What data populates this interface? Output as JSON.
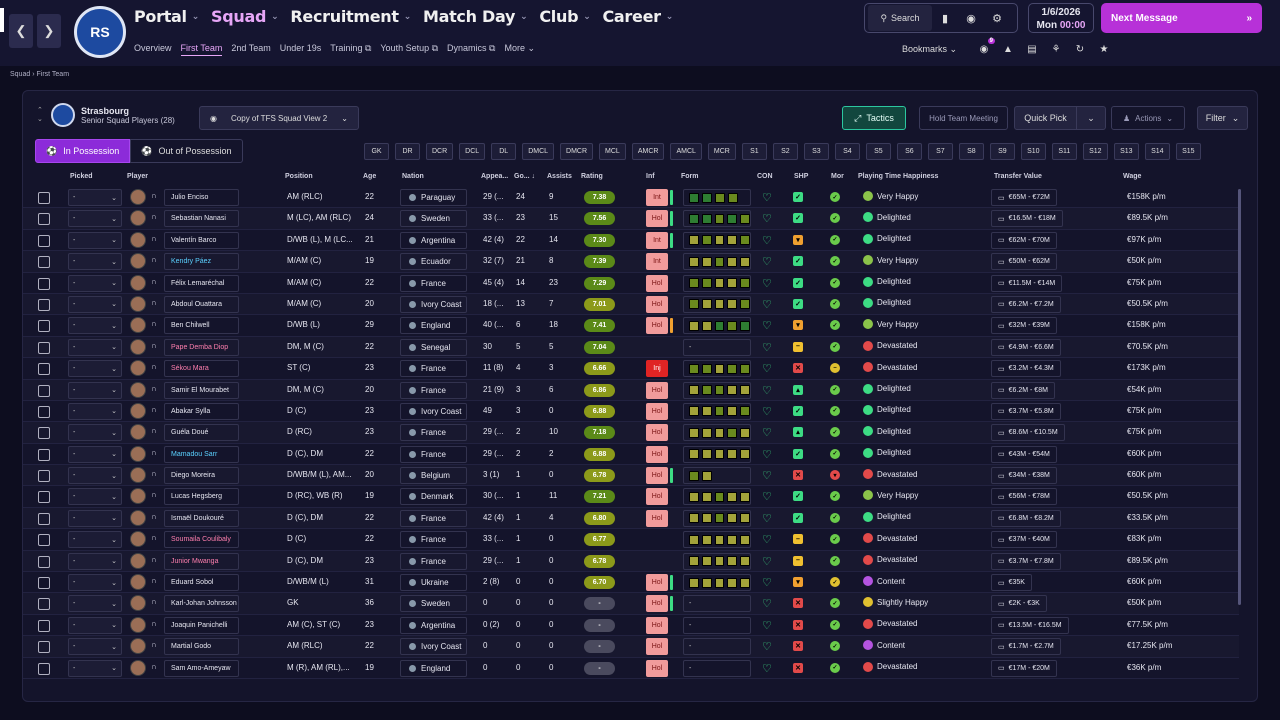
{
  "nav": {
    "items": [
      {
        "label": "Portal"
      },
      {
        "label": "Squad"
      },
      {
        "label": "Recruitment"
      },
      {
        "label": "Match Day"
      },
      {
        "label": "Club"
      },
      {
        "label": "Career"
      }
    ],
    "sub": [
      {
        "label": "Overview"
      },
      {
        "label": "First Team"
      },
      {
        "label": "2nd Team"
      },
      {
        "label": "Under 19s"
      },
      {
        "label": "Training ⧉"
      },
      {
        "label": "Youth Setup ⧉"
      },
      {
        "label": "Dynamics ⧉"
      },
      {
        "label": "More ⌄"
      }
    ],
    "crest_text": "RS"
  },
  "toolbar": {
    "search_label": "Search",
    "date": "1/6/2026",
    "day": "Mon",
    "time": "00:00",
    "next_message": "Next Message",
    "bookmarks": "Bookmarks",
    "badge": "9"
  },
  "breadcrumb": {
    "parent": "Squad",
    "current": "First Team"
  },
  "squad": {
    "team": "Strasbourg",
    "subtitle": "Senior Squad Players (28)",
    "view": "Copy of TFS Squad View 2",
    "tactics": "Tactics",
    "hold_meeting": "Hold Team Meeting",
    "quick_pick": "Quick Pick",
    "actions": "Actions",
    "filter": "Filter",
    "in_possession": "In Possession",
    "out_possession": "Out of Possession"
  },
  "position_chips": [
    "GK",
    "DR",
    "DCR",
    "DCL",
    "DL",
    "DMCL",
    "DMCR",
    "MCL",
    "AMCR",
    "AMCL",
    "MCR",
    "S1",
    "S2",
    "S3",
    "S4",
    "S5",
    "S6",
    "S7",
    "S8",
    "S9",
    "S10",
    "S11",
    "S12",
    "S13",
    "S14",
    "S15"
  ],
  "columns": {
    "picked": "Picked",
    "player": "Player",
    "position": "Position",
    "age": "Age",
    "nation": "Nation",
    "apps": "Appea...",
    "goals": "Go... ↓",
    "assists": "Assists",
    "rating": "Rating",
    "inf": "Inf",
    "form": "Form",
    "con": "CON",
    "shp": "SHP",
    "mor": "Mor",
    "happiness": "Playing Time Happiness",
    "transfer": "Transfer Value",
    "wage": "Wage"
  },
  "colors": {
    "accent": "#b731d8",
    "green": "#3ddc84",
    "rating_green": "#5b8a18",
    "inf_red": "#f19b9b"
  },
  "players": [
    {
      "pick": "-",
      "name": "Julio Enciso",
      "name_style": "",
      "pos": "AM (RLC)",
      "age": "22",
      "nation": "Paraguay",
      "apps": "29 (...",
      "goals": "24",
      "assists": "9",
      "rating": "7.38",
      "rate_class": "g",
      "inf": "Int",
      "inf_class": "",
      "inf_bar": "#3ddc84",
      "form": [
        "#2e7d32",
        "#2e7d32",
        "#6a8a1e",
        "#6a8a1e"
      ],
      "shp": "#3ddc84",
      "shp_icon": "✓",
      "mor": "#6acb4b",
      "mor_icon": "✓",
      "hap": "Very Happy",
      "hap_color": "#8bc34a",
      "tv": "€65M - €72M",
      "wage": "€158K p/m"
    },
    {
      "pick": "-",
      "name": "Sebastian Nanasi",
      "name_style": "",
      "pos": "M (LC), AM (RLC)",
      "age": "24",
      "nation": "Sweden",
      "apps": "33 (...",
      "goals": "23",
      "assists": "15",
      "rating": "7.56",
      "rate_class": "g",
      "inf": "Hol",
      "inf_class": "",
      "inf_bar": "#3ddc84",
      "form": [
        "#2e7d32",
        "#2e7d32",
        "#6a8a1e",
        "#2e7d32",
        "#6a8a1e"
      ],
      "shp": "#3ddc84",
      "shp_icon": "✓",
      "mor": "#6acb4b",
      "mor_icon": "✓",
      "hap": "Delighted",
      "hap_color": "#3ddc84",
      "tv": "€16.5M - €18M",
      "wage": "€89.5K p/m"
    },
    {
      "pick": "-",
      "name": "Valentín Barco",
      "name_style": "",
      "pos": "D/WB (L), M (LC...",
      "age": "21",
      "nation": "Argentina",
      "apps": "42 (4)",
      "goals": "22",
      "assists": "14",
      "rating": "7.30",
      "rate_class": "g",
      "inf": "Int",
      "inf_class": "",
      "inf_bar": "#3ddc84",
      "form": [
        "#a3a33a",
        "#6a8a1e",
        "#a3a33a",
        "#a3a33a",
        "#6a8a1e"
      ],
      "shp": "#f0a030",
      "shp_icon": "▾",
      "mor": "#6acb4b",
      "mor_icon": "✓",
      "hap": "Delighted",
      "hap_color": "#3ddc84",
      "tv": "€62M - €70M",
      "wage": "€97K p/m"
    },
    {
      "pick": "-",
      "name": "Kendry Páez",
      "name_style": "loan",
      "pos": "M/AM (C)",
      "age": "19",
      "nation": "Ecuador",
      "apps": "32 (7)",
      "goals": "21",
      "assists": "8",
      "rating": "7.39",
      "rate_class": "g",
      "inf": "Int",
      "inf_class": "",
      "inf_bar": "",
      "form": [
        "#a3a33a",
        "#a3a33a",
        "#6a8a1e",
        "#a3a33a",
        "#a3a33a"
      ],
      "shp": "#3ddc84",
      "shp_icon": "✓",
      "mor": "#6acb4b",
      "mor_icon": "✓",
      "hap": "Very Happy",
      "hap_color": "#8bc34a",
      "tv": "€50M - €62M",
      "wage": "€50K p/m"
    },
    {
      "pick": "-",
      "name": "Félix Lemaréchal",
      "name_style": "",
      "pos": "M/AM (C)",
      "age": "22",
      "nation": "France",
      "apps": "45 (4)",
      "goals": "14",
      "assists": "23",
      "rating": "7.29",
      "rate_class": "g",
      "inf": "Hol",
      "inf_class": "",
      "inf_bar": "",
      "form": [
        "#6a8a1e",
        "#6a8a1e",
        "#a3a33a",
        "#a3a33a",
        "#6a8a1e"
      ],
      "shp": "#3ddc84",
      "shp_icon": "✓",
      "mor": "#6acb4b",
      "mor_icon": "✓",
      "hap": "Delighted",
      "hap_color": "#3ddc84",
      "tv": "€11.5M - €14M",
      "wage": "€75K p/m"
    },
    {
      "pick": "-",
      "name": "Abdoul Ouattara",
      "name_style": "",
      "pos": "M/AM (C)",
      "age": "20",
      "nation": "Ivory Coast",
      "apps": "18 (...",
      "goals": "13",
      "assists": "7",
      "rating": "7.01",
      "rate_class": "y",
      "inf": "Hol",
      "inf_class": "",
      "inf_bar": "",
      "form": [
        "#6a8a1e",
        "#a3a33a",
        "#a3a33a",
        "#a3a33a",
        "#6a8a1e"
      ],
      "shp": "#3ddc84",
      "shp_icon": "✓",
      "mor": "#6acb4b",
      "mor_icon": "✓",
      "hap": "Delighted",
      "hap_color": "#3ddc84",
      "tv": "€6.2M - €7.2M",
      "wage": "€50.5K p/m"
    },
    {
      "pick": "-",
      "name": "Ben Chilwell",
      "name_style": "",
      "pos": "D/WB (L)",
      "age": "29",
      "nation": "England",
      "apps": "40 (...",
      "goals": "6",
      "assists": "18",
      "rating": "7.41",
      "rate_class": "g",
      "inf": "Hol",
      "inf_class": "",
      "inf_bar": "#f0a030",
      "form": [
        "#a3a33a",
        "#a3a33a",
        "#2e7d32",
        "#6a8a1e",
        "#2e7d32"
      ],
      "shp": "#f0a030",
      "shp_icon": "▾",
      "mor": "#6acb4b",
      "mor_icon": "✓",
      "hap": "Very Happy",
      "hap_color": "#8bc34a",
      "tv": "€32M - €39M",
      "wage": "€158K p/m"
    },
    {
      "pick": "-",
      "name": "Pape Demba Diop",
      "name_style": "trans",
      "pos": "DM, M (C)",
      "age": "22",
      "nation": "Senegal",
      "apps": "30",
      "goals": "5",
      "assists": "5",
      "rating": "7.04",
      "rate_class": "g",
      "inf": "",
      "inf_class": "none",
      "inf_bar": "",
      "form": [
        "-"
      ],
      "shp": "#f0c030",
      "shp_icon": "–",
      "mor": "#6acb4b",
      "mor_icon": "✓",
      "hap": "Devastated",
      "hap_color": "#e24a4a",
      "tv": "€4.9M - €6.6M",
      "wage": "€70.5K p/m"
    },
    {
      "pick": "-",
      "name": "Sékou Mara",
      "name_style": "trans",
      "pos": "ST (C)",
      "age": "23",
      "nation": "France",
      "apps": "11 (8)",
      "goals": "4",
      "assists": "3",
      "rating": "6.66",
      "rate_class": "y",
      "inf": "Inj",
      "inf_class": "inj",
      "inf_bar": "",
      "form": [
        "#6a8a1e",
        "#6a8a1e",
        "#a3a33a",
        "#6a8a1e",
        "#6a8a1e"
      ],
      "shp": "#e24a4a",
      "shp_icon": "✕",
      "mor": "#e0c030",
      "mor_icon": "–",
      "hap": "Devastated",
      "hap_color": "#e24a4a",
      "tv": "€3.2M - €4.3M",
      "wage": "€173K p/m"
    },
    {
      "pick": "-",
      "name": "Samir El Mourabet",
      "name_style": "",
      "pos": "DM, M (C)",
      "age": "20",
      "nation": "France",
      "apps": "21 (9)",
      "goals": "3",
      "assists": "6",
      "rating": "6.86",
      "rate_class": "y",
      "inf": "Hol",
      "inf_class": "",
      "inf_bar": "",
      "form": [
        "#a3a33a",
        "#6a8a1e",
        "#6a8a1e",
        "#a3a33a",
        "#a3a33a"
      ],
      "shp": "#3ddc84",
      "shp_icon": "▴",
      "mor": "#6acb4b",
      "mor_icon": "✓",
      "hap": "Delighted",
      "hap_color": "#3ddc84",
      "tv": "€6.2M - €8M",
      "wage": "€54K p/m"
    },
    {
      "pick": "-",
      "name": "Abakar Sylla",
      "name_style": "",
      "pos": "D (C)",
      "age": "23",
      "nation": "Ivory Coast",
      "apps": "49",
      "goals": "3",
      "assists": "0",
      "rating": "6.88",
      "rate_class": "y",
      "inf": "Hol",
      "inf_class": "",
      "inf_bar": "",
      "form": [
        "#a3a33a",
        "#a3a33a",
        "#6a8a1e",
        "#a3a33a",
        "#6a8a1e"
      ],
      "shp": "#3ddc84",
      "shp_icon": "✓",
      "mor": "#6acb4b",
      "mor_icon": "✓",
      "hap": "Delighted",
      "hap_color": "#3ddc84",
      "tv": "€3.7M - €5.8M",
      "wage": "€75K p/m"
    },
    {
      "pick": "-",
      "name": "Guéla Doué",
      "name_style": "",
      "pos": "D (RC)",
      "age": "23",
      "nation": "France",
      "apps": "29 (...",
      "goals": "2",
      "assists": "10",
      "rating": "7.18",
      "rate_class": "g",
      "inf": "Hol",
      "inf_class": "",
      "inf_bar": "",
      "form": [
        "#a3a33a",
        "#a3a33a",
        "#a3a33a",
        "#6a8a1e",
        "#a3a33a"
      ],
      "shp": "#3ddc84",
      "shp_icon": "▴",
      "mor": "#6acb4b",
      "mor_icon": "✓",
      "hap": "Delighted",
      "hap_color": "#3ddc84",
      "tv": "€8.6M - €10.5M",
      "wage": "€75K p/m"
    },
    {
      "pick": "-",
      "name": "Mamadou Sarr",
      "name_style": "loan",
      "pos": "D (C), DM",
      "age": "22",
      "nation": "France",
      "apps": "29 (...",
      "goals": "2",
      "assists": "2",
      "rating": "6.88",
      "rate_class": "y",
      "inf": "Hol",
      "inf_class": "",
      "inf_bar": "",
      "form": [
        "#a3a33a",
        "#a3a33a",
        "#a3a33a",
        "#a3a33a",
        "#a3a33a"
      ],
      "shp": "#3ddc84",
      "shp_icon": "✓",
      "mor": "#6acb4b",
      "mor_icon": "✓",
      "hap": "Delighted",
      "hap_color": "#3ddc84",
      "tv": "€43M - €54M",
      "wage": "€60K p/m"
    },
    {
      "pick": "-",
      "name": "Diego Moreira",
      "name_style": "",
      "pos": "D/WB/M (L), AM...",
      "age": "20",
      "nation": "Belgium",
      "apps": "3 (1)",
      "goals": "1",
      "assists": "0",
      "rating": "6.78",
      "rate_class": "y",
      "inf": "Hol",
      "inf_class": "",
      "inf_bar": "#3ddc84",
      "form": [
        "#6a8a1e",
        "#a3a33a"
      ],
      "shp": "#e24a4a",
      "shp_icon": "✕",
      "mor": "#e24a4a",
      "mor_icon": "▾",
      "hap": "Devastated",
      "hap_color": "#e24a4a",
      "tv": "€34M - €38M",
      "wage": "€60K p/m"
    },
    {
      "pick": "-",
      "name": "Lucas Hegsberg",
      "name_style": "",
      "pos": "D (RC), WB (R)",
      "age": "19",
      "nation": "Denmark",
      "apps": "30 (...",
      "goals": "1",
      "assists": "11",
      "rating": "7.21",
      "rate_class": "g",
      "inf": "Hol",
      "inf_class": "",
      "inf_bar": "",
      "form": [
        "#a3a33a",
        "#a3a33a",
        "#6a8a1e",
        "#a3a33a",
        "#a3a33a"
      ],
      "shp": "#3ddc84",
      "shp_icon": "✓",
      "mor": "#6acb4b",
      "mor_icon": "✓",
      "hap": "Very Happy",
      "hap_color": "#8bc34a",
      "tv": "€56M - €78M",
      "wage": "€50.5K p/m"
    },
    {
      "pick": "-",
      "name": "Ismaël Doukouré",
      "name_style": "",
      "pos": "D (C), DM",
      "age": "22",
      "nation": "France",
      "apps": "42 (4)",
      "goals": "1",
      "assists": "4",
      "rating": "6.80",
      "rate_class": "y",
      "inf": "Hol",
      "inf_class": "",
      "inf_bar": "",
      "form": [
        "#a3a33a",
        "#a3a33a",
        "#6a8a1e",
        "#a3a33a",
        "#a3a33a"
      ],
      "shp": "#3ddc84",
      "shp_icon": "✓",
      "mor": "#6acb4b",
      "mor_icon": "✓",
      "hap": "Delighted",
      "hap_color": "#3ddc84",
      "tv": "€6.8M - €8.2M",
      "wage": "€33.5K p/m"
    },
    {
      "pick": "-",
      "name": "Soumaila Coulibaly",
      "name_style": "trans",
      "pos": "D (C)",
      "age": "22",
      "nation": "France",
      "apps": "33 (...",
      "goals": "1",
      "assists": "0",
      "rating": "6.77",
      "rate_class": "y",
      "inf": "",
      "inf_class": "none",
      "inf_bar": "",
      "form": [
        "#a3a33a",
        "#a3a33a",
        "#a3a33a",
        "#a3a33a",
        "#a3a33a"
      ],
      "shp": "#f0c030",
      "shp_icon": "–",
      "mor": "#6acb4b",
      "mor_icon": "✓",
      "hap": "Devastated",
      "hap_color": "#e24a4a",
      "tv": "€37M - €40M",
      "wage": "€83K p/m"
    },
    {
      "pick": "-",
      "name": "Junior Mwanga",
      "name_style": "trans",
      "pos": "D (C), DM",
      "age": "23",
      "nation": "France",
      "apps": "29 (...",
      "goals": "1",
      "assists": "0",
      "rating": "6.78",
      "rate_class": "y",
      "inf": "",
      "inf_class": "none",
      "inf_bar": "",
      "form": [
        "#a3a33a",
        "#a3a33a",
        "#a3a33a",
        "#a3a33a",
        "#a3a33a"
      ],
      "shp": "#f0c030",
      "shp_icon": "–",
      "mor": "#6acb4b",
      "mor_icon": "✓",
      "hap": "Devastated",
      "hap_color": "#e24a4a",
      "tv": "€3.7M - €7.8M",
      "wage": "€89.5K p/m"
    },
    {
      "pick": "-",
      "name": "Eduard Sobol",
      "name_style": "",
      "pos": "D/WB/M (L)",
      "age": "31",
      "nation": "Ukraine",
      "apps": "2 (8)",
      "goals": "0",
      "assists": "0",
      "rating": "6.70",
      "rate_class": "y",
      "inf": "Hol",
      "inf_class": "",
      "inf_bar": "#3ddc84",
      "form": [
        "#a3a33a",
        "#a3a33a",
        "#a3a33a",
        "#a3a33a",
        "#a3a33a"
      ],
      "shp": "#f0a030",
      "shp_icon": "▾",
      "mor": "#e0c030",
      "mor_icon": "✓",
      "hap": "Content",
      "hap_color": "#b454e0",
      "tv": "€35K",
      "wage": "€60K p/m"
    },
    {
      "pick": "-",
      "name": "Karl-Johan Johnsson",
      "name_style": "",
      "pos": "GK",
      "age": "36",
      "nation": "Sweden",
      "apps": "0",
      "goals": "0",
      "assists": "0",
      "rating": "-",
      "rate_class": "n",
      "inf": "Hol",
      "inf_class": "",
      "inf_bar": "#3ddc84",
      "form": [
        "-"
      ],
      "shp": "#e24a4a",
      "shp_icon": "✕",
      "mor": "#6acb4b",
      "mor_icon": "✓",
      "hap": "Slightly Happy",
      "hap_color": "#e0c030",
      "tv": "€2K - €3K",
      "wage": "€50K p/m"
    },
    {
      "pick": "-",
      "name": "Joaquin Panichelli",
      "name_style": "",
      "pos": "AM (C), ST (C)",
      "age": "23",
      "nation": "Argentina",
      "apps": "0 (2)",
      "goals": "0",
      "assists": "0",
      "rating": "-",
      "rate_class": "n",
      "inf": "Hol",
      "inf_class": "",
      "inf_bar": "",
      "form": [
        "-"
      ],
      "shp": "#e24a4a",
      "shp_icon": "✕",
      "mor": "#6acb4b",
      "mor_icon": "✓",
      "hap": "Devastated",
      "hap_color": "#e24a4a",
      "tv": "€13.5M - €16.5M",
      "wage": "€77.5K p/m"
    },
    {
      "pick": "-",
      "name": "Martial Godo",
      "name_style": "",
      "pos": "AM (RLC)",
      "age": "22",
      "nation": "Ivory Coast",
      "apps": "0",
      "goals": "0",
      "assists": "0",
      "rating": "-",
      "rate_class": "n",
      "inf": "Hol",
      "inf_class": "",
      "inf_bar": "",
      "form": [
        "-"
      ],
      "shp": "#e24a4a",
      "shp_icon": "✕",
      "mor": "#6acb4b",
      "mor_icon": "✓",
      "hap": "Content",
      "hap_color": "#b454e0",
      "tv": "€1.7M - €2.7M",
      "wage": "€17.25K p/m"
    },
    {
      "pick": "-",
      "name": "Sam Amo-Ameyaw",
      "name_style": "",
      "pos": "M (R), AM (RL),...",
      "age": "19",
      "nation": "England",
      "apps": "0",
      "goals": "0",
      "assists": "0",
      "rating": "-",
      "rate_class": "n",
      "inf": "Hol",
      "inf_class": "",
      "inf_bar": "",
      "form": [
        "-"
      ],
      "shp": "#e24a4a",
      "shp_icon": "✕",
      "mor": "#6acb4b",
      "mor_icon": "✓",
      "hap": "Devastated",
      "hap_color": "#e24a4a",
      "tv": "€17M - €20M",
      "wage": "€36K p/m"
    }
  ]
}
